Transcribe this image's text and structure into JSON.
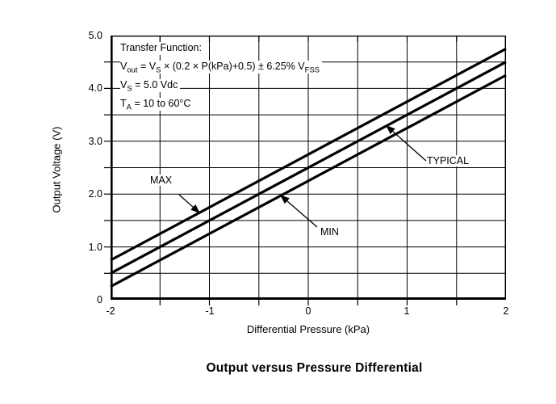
{
  "colors": {
    "background": "#ffffff",
    "line": "#000000",
    "grid": "#000000",
    "text": "#000000"
  },
  "chart_data": {
    "type": "line",
    "title": "Output versus Pressure Differential",
    "xlabel": "Differential Pressure (kPa)",
    "ylabel": "Output Voltage (V)",
    "xlim": [
      -2,
      2
    ],
    "ylim": [
      0,
      5
    ],
    "grid": true,
    "grid_step_x": 0.5,
    "grid_step_y": 0.5,
    "legend_position": "inline-annotations",
    "x": [
      -2,
      2
    ],
    "series": [
      {
        "name": "MAX",
        "values": [
          0.75,
          4.75
        ]
      },
      {
        "name": "TYPICAL",
        "values": [
          0.5,
          4.5
        ]
      },
      {
        "name": "MIN",
        "values": [
          0.25,
          4.25
        ]
      }
    ],
    "x_tick_labels": [
      "-2",
      "-1",
      "0",
      "1",
      "2"
    ],
    "y_tick_labels": [
      "5.0",
      "4.0",
      "3.0",
      "2.0",
      "1.0",
      "0"
    ]
  },
  "note": {
    "title": "Transfer Function:",
    "formula_parts": [
      {
        "t": "V"
      },
      {
        "t": "out"
      },
      {
        "t": " = V"
      },
      {
        "t": "S"
      },
      {
        "t": " × (0.2 × P(kPa)+0.5) ± 6.25% V"
      },
      {
        "t": "FSS"
      }
    ],
    "supply_parts": [
      {
        "t": "V"
      },
      {
        "t": "S"
      },
      {
        "t": " = 5.0 Vdc"
      }
    ],
    "temp_parts": [
      {
        "t": "T"
      },
      {
        "t": "A"
      },
      {
        "t": " = 10 to 60°C"
      }
    ]
  }
}
